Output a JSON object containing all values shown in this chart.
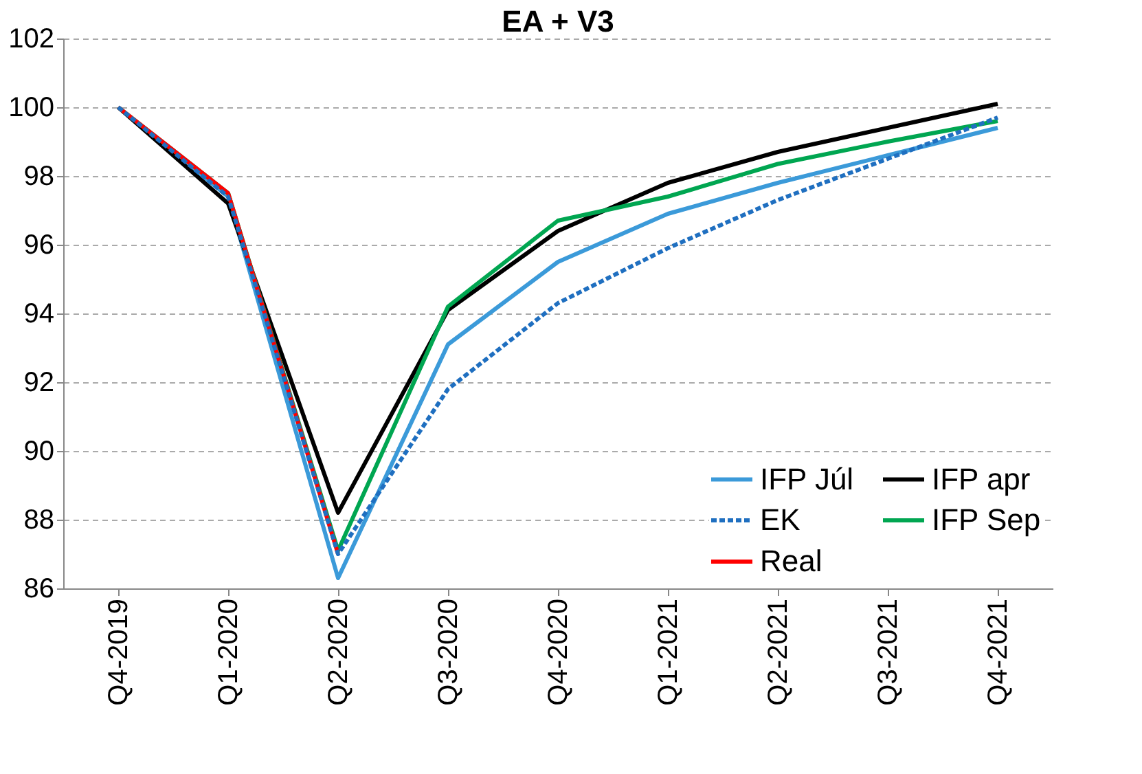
{
  "chart_data": {
    "type": "line",
    "title": "EA + V3",
    "categories": [
      "Q4-2019",
      "Q1-2020",
      "Q2-2020",
      "Q3-2020",
      "Q4-2020",
      "Q1-2021",
      "Q2-2021",
      "Q3-2021",
      "Q4-2021"
    ],
    "series": [
      {
        "name": "IFP Júl",
        "color": "#3b9ad9",
        "line_style": "solid",
        "values": [
          100,
          97.4,
          86.3,
          93.1,
          95.5,
          96.9,
          97.8,
          98.6,
          99.4
        ]
      },
      {
        "name": "IFP apr",
        "color": "#000000",
        "line_style": "solid",
        "values": [
          100,
          97.2,
          88.2,
          94.1,
          96.4,
          97.8,
          98.7,
          99.4,
          100.1
        ]
      },
      {
        "name": "EK",
        "color": "#1f6fc0",
        "line_style": "dashed",
        "values": [
          100,
          97.4,
          87.0,
          91.8,
          94.3,
          95.9,
          97.3,
          98.5,
          99.7
        ]
      },
      {
        "name": "IFP Sep",
        "color": "#00a651",
        "line_style": "solid",
        "values": [
          100,
          97.5,
          87.1,
          94.2,
          96.7,
          97.4,
          98.35,
          99.0,
          99.6
        ]
      },
      {
        "name": "Real",
        "color": "#ff0000",
        "line_style": "solid",
        "values": [
          100,
          97.5,
          87.0,
          null,
          null,
          null,
          null,
          null,
          null
        ]
      }
    ],
    "ylim": [
      86,
      102
    ],
    "yticks": [
      86,
      88,
      90,
      92,
      94,
      96,
      98,
      100,
      102
    ],
    "grid": "y",
    "legend": "bottom right",
    "marker": "none"
  }
}
